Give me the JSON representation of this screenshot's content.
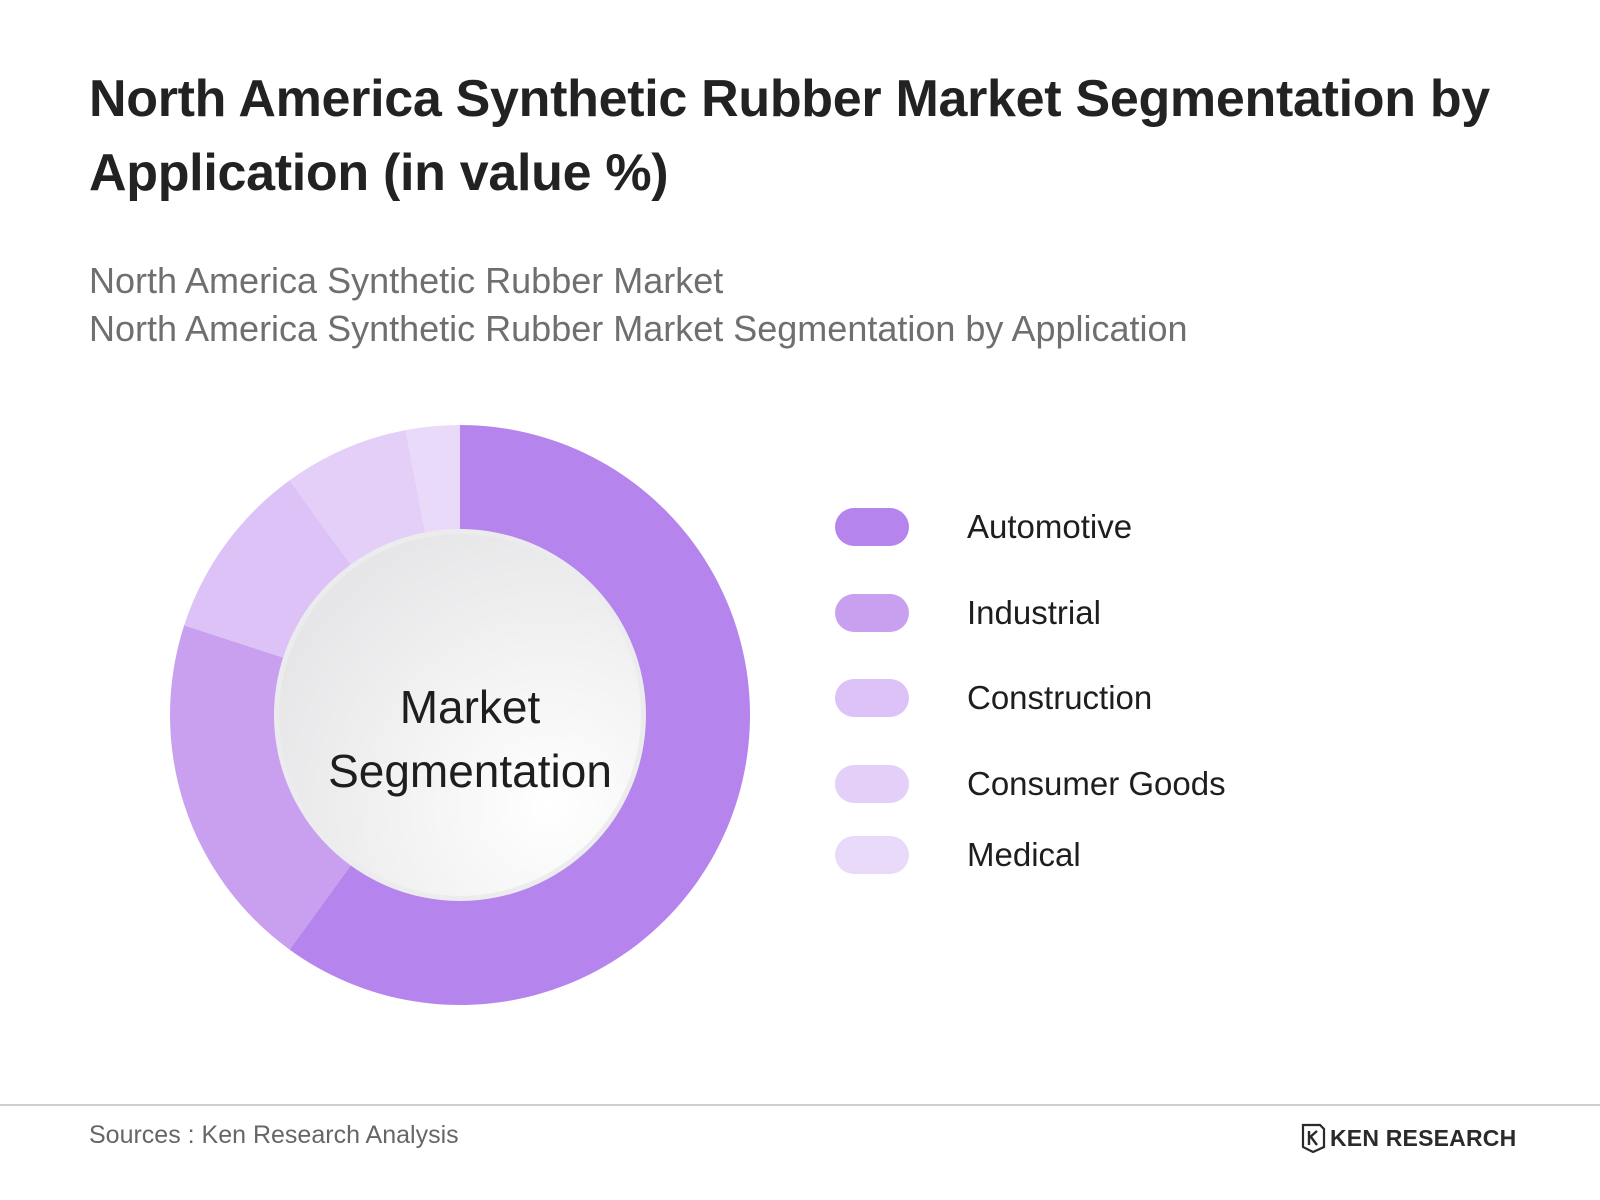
{
  "header": {
    "title": "North America Synthetic Rubber Market Segmentation by Application (in value %)",
    "subtitle_line1": "North America Synthetic Rubber Market",
    "subtitle_line2": "North America Synthetic Rubber Market Segmentation by Application"
  },
  "chart_data": {
    "type": "pie",
    "variant": "donut",
    "center_label_line1": "Market",
    "center_label_line2": "Segmentation",
    "categories": [
      "Automotive",
      "Industrial",
      "Construction",
      "Consumer Goods",
      "Medical"
    ],
    "values": [
      60,
      20,
      10,
      7,
      3
    ],
    "colors": [
      "#b584ec",
      "#c8a0ef",
      "#dcc2f6",
      "#e3cff7",
      "#e9daf9"
    ],
    "legend_position": "right"
  },
  "footer": {
    "source": "Sources : Ken Research Analysis",
    "logo_text": "KEN RESEARCH"
  }
}
